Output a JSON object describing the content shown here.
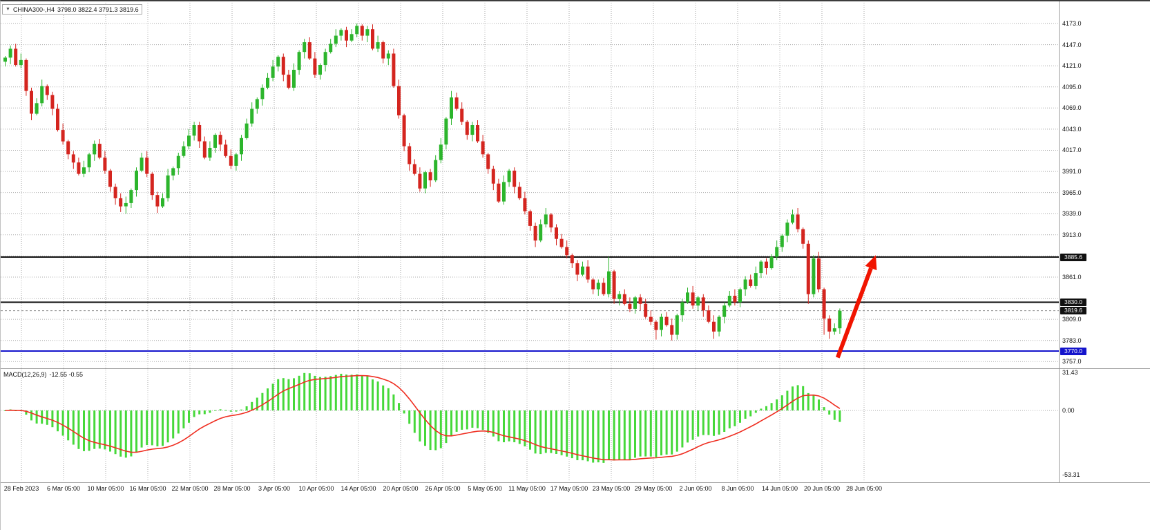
{
  "header": {
    "symbol_timeframe": "CHINA300-,H4",
    "ohlc": "3798.0 3822.4 3791.3 3819.6",
    "dropdown_icon": "triangle-down"
  },
  "colors": {
    "candle_up": "#2cb52c",
    "candle_down": "#d4251f",
    "macd_hist": "#46d83a",
    "signal": "#ef2e21",
    "grid": "#ababab",
    "line_black": "#111111",
    "line_blue": "#1414cc",
    "arrow": "#f01400",
    "axis_text": "#111111"
  },
  "chart_data": [
    {
      "type": "candlestick",
      "title": "CHINA300-,H4",
      "timeframe": "H4",
      "current_bar": {
        "open": 3798.0,
        "high": 3822.4,
        "low": 3791.3,
        "close": 3819.6
      },
      "x_labels": [
        "28 Feb 2023",
        "6 Mar 05:00",
        "10 Mar 05:00",
        "16 Mar 05:00",
        "22 Mar 05:00",
        "28 Mar 05:00",
        "3 Apr 05:00",
        "10 Apr 05:00",
        "14 Apr 05:00",
        "20 Apr 05:00",
        "26 Apr 05:00",
        "5 May 05:00",
        "11 May 05:00",
        "17 May 05:00",
        "23 May 05:00",
        "29 May 05:00",
        "2 Jun 05:00",
        "8 Jun 05:00",
        "14 Jun 05:00",
        "20 Jun 05:00",
        "28 Jun 05:00"
      ],
      "y_axis": {
        "max": 4173.0,
        "min": 3757.0,
        "tick_step": 26.0,
        "tick_labels": [
          "4173.0",
          "4147.0",
          "4121.0",
          "4095.0",
          "4069.0",
          "4043.0",
          "4017.0",
          "3991.0",
          "3965.0",
          "3939.0",
          "3913.0",
          "3861.0",
          "3809.0",
          "3783.0",
          "3757.0"
        ]
      },
      "price_lines": [
        {
          "value": 3885.6,
          "label": "3885.6",
          "color": "#111111",
          "width": 2
        },
        {
          "value": 3830.0,
          "label": "3830.0",
          "color": "#111111",
          "width": 2
        },
        {
          "value": 3770.0,
          "label": "3770.0",
          "color": "#1414cc",
          "width": 2
        }
      ],
      "current_price": {
        "value": 3819.6,
        "label": "3819.6"
      },
      "annotations": [
        {
          "type": "arrow-up",
          "color": "#f01400",
          "x_start_frac": 0.791,
          "price_start": 3762,
          "x_end_frac": 0.827,
          "price_end": 3888
        }
      ],
      "candles_ohlc": [
        [
          4126,
          4133,
          4120,
          4131
        ],
        [
          4131,
          4146,
          4123,
          4142
        ],
        [
          4142,
          4148,
          4120,
          4122
        ],
        [
          4122,
          4136,
          4118,
          4128
        ],
        [
          4128,
          4130,
          4084,
          4090
        ],
        [
          4090,
          4094,
          4054,
          4062
        ],
        [
          4062,
          4081,
          4060,
          4075
        ],
        [
          4075,
          4104,
          4071,
          4096
        ],
        [
          4096,
          4098,
          4079,
          4085
        ],
        [
          4085,
          4089,
          4060,
          4068
        ],
        [
          4068,
          4074,
          4040,
          4042
        ],
        [
          4042,
          4050,
          4024,
          4028
        ],
        [
          4028,
          4030,
          4006,
          4012
        ],
        [
          4012,
          4016,
          3994,
          4002
        ],
        [
          4002,
          4008,
          3986,
          3988
        ],
        [
          3988,
          4004,
          3984,
          3996
        ],
        [
          3996,
          4014,
          3990,
          4012
        ],
        [
          4012,
          4029,
          4004,
          4025
        ],
        [
          4025,
          4031,
          4006,
          4008
        ],
        [
          4008,
          4016,
          3988,
          3992
        ],
        [
          3992,
          3994,
          3966,
          3972
        ],
        [
          3972,
          3976,
          3950,
          3958
        ],
        [
          3958,
          3964,
          3941,
          3948
        ],
        [
          3948,
          3960,
          3939,
          3952
        ],
        [
          3952,
          3970,
          3946,
          3968
        ],
        [
          3968,
          3996,
          3960,
          3992
        ],
        [
          3992,
          4014,
          3990,
          4008
        ],
        [
          4008,
          4016,
          3984,
          3988
        ],
        [
          3988,
          3990,
          3956,
          3962
        ],
        [
          3962,
          3966,
          3940,
          3948
        ],
        [
          3948,
          3964,
          3946,
          3958
        ],
        [
          3958,
          3994,
          3954,
          3986
        ],
        [
          3986,
          3997,
          3980,
          3995
        ],
        [
          3995,
          4014,
          3987,
          4010
        ],
        [
          4010,
          4028,
          4008,
          4022
        ],
        [
          4022,
          4043,
          4018,
          4035
        ],
        [
          4035,
          4052,
          4029,
          4048
        ],
        [
          4048,
          4052,
          4020,
          4028
        ],
        [
          4028,
          4034,
          4006,
          4008
        ],
        [
          4008,
          4028,
          4004,
          4020
        ],
        [
          4020,
          4038,
          4014,
          4036
        ],
        [
          4036,
          4040,
          4016,
          4024
        ],
        [
          4024,
          4030,
          4008,
          4010
        ],
        [
          4010,
          4018,
          3994,
          3998
        ],
        [
          3998,
          4014,
          3992,
          4012
        ],
        [
          4012,
          4036,
          4004,
          4032
        ],
        [
          4032,
          4056,
          4030,
          4050
        ],
        [
          4050,
          4076,
          4046,
          4068
        ],
        [
          4068,
          4082,
          4062,
          4080
        ],
        [
          4080,
          4098,
          4072,
          4094
        ],
        [
          4094,
          4112,
          4092,
          4106
        ],
        [
          4106,
          4128,
          4102,
          4120
        ],
        [
          4120,
          4134,
          4114,
          4132
        ],
        [
          4132,
          4136,
          4102,
          4110
        ],
        [
          4110,
          4116,
          4092,
          4094
        ],
        [
          4094,
          4124,
          4090,
          4116
        ],
        [
          4116,
          4140,
          4110,
          4138
        ],
        [
          4138,
          4154,
          4130,
          4150
        ],
        [
          4150,
          4156,
          4128,
          4130
        ],
        [
          4130,
          4138,
          4106,
          4110
        ],
        [
          4110,
          4124,
          4104,
          4122
        ],
        [
          4122,
          4142,
          4114,
          4138
        ],
        [
          4138,
          4154,
          4136,
          4148
        ],
        [
          4148,
          4166,
          4144,
          4158
        ],
        [
          4158,
          4167,
          4152,
          4165
        ],
        [
          4165,
          4169,
          4144,
          4152
        ],
        [
          4152,
          4166,
          4150,
          4160
        ],
        [
          4160,
          4173,
          4156,
          4170
        ],
        [
          4170,
          4172,
          4152,
          4158
        ],
        [
          4158,
          4170,
          4150,
          4166
        ],
        [
          4166,
          4172,
          4140,
          4142
        ],
        [
          4142,
          4158,
          4138,
          4150
        ],
        [
          4150,
          4152,
          4124,
          4130
        ],
        [
          4130,
          4140,
          4122,
          4136
        ],
        [
          4136,
          4142,
          4094,
          4096
        ],
        [
          4096,
          4104,
          4056,
          4060
        ],
        [
          4060,
          4062,
          4016,
          4022
        ],
        [
          4022,
          4026,
          3992,
          4000
        ],
        [
          4000,
          4006,
          3986,
          3988
        ],
        [
          3988,
          3996,
          3966,
          3970
        ],
        [
          3970,
          3992,
          3964,
          3990
        ],
        [
          3990,
          3994,
          3972,
          3980
        ],
        [
          3980,
          4011,
          3978,
          4005
        ],
        [
          4005,
          4032,
          4001,
          4024
        ],
        [
          4024,
          4058,
          4018,
          4056
        ],
        [
          4056,
          4090,
          4048,
          4082
        ],
        [
          4082,
          4088,
          4066,
          4068
        ],
        [
          4068,
          4076,
          4048,
          4052
        ],
        [
          4052,
          4054,
          4030,
          4036
        ],
        [
          4036,
          4052,
          4028,
          4048
        ],
        [
          4048,
          4054,
          4026,
          4028
        ],
        [
          4028,
          4036,
          4008,
          4012
        ],
        [
          4012,
          4014,
          3988,
          3994
        ],
        [
          3994,
          3998,
          3968,
          3976
        ],
        [
          3976,
          3982,
          3952,
          3954
        ],
        [
          3954,
          3986,
          3950,
          3978
        ],
        [
          3978,
          3994,
          3972,
          3992
        ],
        [
          3992,
          3996,
          3964,
          3972
        ],
        [
          3972,
          3978,
          3956,
          3958
        ],
        [
          3958,
          3966,
          3938,
          3942
        ],
        [
          3942,
          3944,
          3918,
          3924
        ],
        [
          3924,
          3928,
          3898,
          3906
        ],
        [
          3906,
          3932,
          3904,
          3926
        ],
        [
          3926,
          3946,
          3922,
          3938
        ],
        [
          3938,
          3940,
          3916,
          3922
        ],
        [
          3922,
          3926,
          3900,
          3908
        ],
        [
          3908,
          3914,
          3896,
          3898
        ],
        [
          3898,
          3906,
          3884,
          3888
        ],
        [
          3888,
          3890,
          3872,
          3878
        ],
        [
          3878,
          3882,
          3856,
          3864
        ],
        [
          3864,
          3880,
          3862,
          3874
        ],
        [
          3874,
          3882,
          3854,
          3858
        ],
        [
          3858,
          3860,
          3840,
          3846
        ],
        [
          3846,
          3858,
          3838,
          3854
        ],
        [
          3854,
          3860,
          3838,
          3840
        ],
        [
          3840,
          3886,
          3836,
          3868
        ],
        [
          3868,
          3870,
          3828,
          3834
        ],
        [
          3834,
          3844,
          3826,
          3840
        ],
        [
          3840,
          3846,
          3826,
          3828
        ],
        [
          3828,
          3836,
          3818,
          3822
        ],
        [
          3822,
          3838,
          3816,
          3836
        ],
        [
          3836,
          3840,
          3820,
          3828
        ],
        [
          3828,
          3834,
          3810,
          3812
        ],
        [
          3812,
          3820,
          3802,
          3806
        ],
        [
          3806,
          3808,
          3784,
          3796
        ],
        [
          3796,
          3816,
          3788,
          3812
        ],
        [
          3812,
          3818,
          3800,
          3802
        ],
        [
          3802,
          3810,
          3783,
          3790
        ],
        [
          3790,
          3816,
          3784,
          3814
        ],
        [
          3814,
          3834,
          3806,
          3830
        ],
        [
          3830,
          3848,
          3828,
          3842
        ],
        [
          3842,
          3850,
          3822,
          3826
        ],
        [
          3826,
          3838,
          3820,
          3836
        ],
        [
          3836,
          3840,
          3812,
          3820
        ],
        [
          3820,
          3826,
          3804,
          3806
        ],
        [
          3806,
          3814,
          3785,
          3794
        ],
        [
          3794,
          3814,
          3788,
          3812
        ],
        [
          3812,
          3830,
          3804,
          3826
        ],
        [
          3826,
          3844,
          3824,
          3838
        ],
        [
          3838,
          3846,
          3826,
          3830
        ],
        [
          3830,
          3848,
          3824,
          3846
        ],
        [
          3846,
          3862,
          3838,
          3858
        ],
        [
          3858,
          3864,
          3848,
          3850
        ],
        [
          3850,
          3874,
          3846,
          3866
        ],
        [
          3866,
          3882,
          3860,
          3880
        ],
        [
          3880,
          3884,
          3864,
          3872
        ],
        [
          3872,
          3889,
          3870,
          3886
        ],
        [
          3886,
          3906,
          3882,
          3898
        ],
        [
          3898,
          3914,
          3892,
          3912
        ],
        [
          3912,
          3932,
          3904,
          3928
        ],
        [
          3928,
          3944,
          3926,
          3938
        ],
        [
          3938,
          3946,
          3916,
          3920
        ],
        [
          3920,
          3922,
          3896,
          3902
        ],
        [
          3902,
          3906,
          3828,
          3840
        ],
        [
          3840,
          3888,
          3836,
          3884
        ],
        [
          3884,
          3892,
          3842,
          3846
        ],
        [
          3846,
          3848,
          3790,
          3810
        ],
        [
          3810,
          3814,
          3785,
          3794
        ],
        [
          3794,
          3804,
          3790,
          3798
        ],
        [
          3798,
          3822.4,
          3791.3,
          3819.6
        ]
      ]
    },
    {
      "type": "bar",
      "subtype": "macd-histogram-with-signal-line",
      "label": "MACD(12,26,9)",
      "current_values": "-12.55 -0.55",
      "params": {
        "fast": 12,
        "slow": 26,
        "signal": 9
      },
      "y_ticks": [
        "31.43",
        "0.00",
        "-53.31"
      ],
      "y_range": [
        -53.31,
        31.43
      ],
      "source": "histogram and signal line are EMA(12,26,9) of candles_ohlc closes"
    }
  ]
}
